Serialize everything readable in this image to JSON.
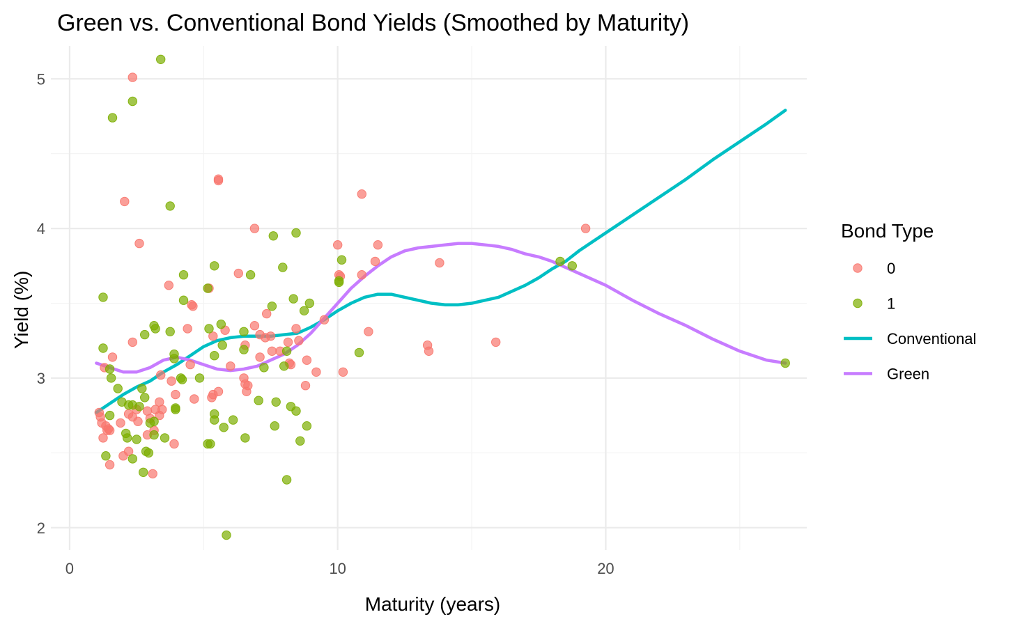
{
  "chart_data": {
    "type": "scatter",
    "title": "Green vs. Conventional Bond Yields (Smoothed by Maturity)",
    "xlabel": "Maturity (years)",
    "ylabel": "Yield (%)",
    "xlim": [
      -0.7,
      27.5
    ],
    "ylim": [
      1.85,
      5.22
    ],
    "x_ticks": [
      0,
      10,
      20
    ],
    "x_minor_ticks": [
      5,
      15,
      25
    ],
    "y_ticks": [
      2,
      3,
      4,
      5
    ],
    "y_minor_ticks": [
      2.5,
      3.5,
      4.5
    ],
    "grid": true,
    "legend": {
      "title": "Bond Type",
      "position": "right",
      "entries": [
        {
          "label": "0",
          "kind": "point",
          "color": "#F8766D"
        },
        {
          "label": "1",
          "kind": "point",
          "color": "#7CAE00"
        },
        {
          "label": "Conventional",
          "kind": "line",
          "color": "#00BFC4"
        },
        {
          "label": "Green",
          "kind": "line",
          "color": "#C77CFF"
        }
      ]
    },
    "point_series": [
      {
        "name": "0",
        "color": "#F8766D",
        "points": [
          [
            1.1,
            2.77
          ],
          [
            1.15,
            2.74
          ],
          [
            1.2,
            2.7
          ],
          [
            1.25,
            2.6
          ],
          [
            1.3,
            3.07
          ],
          [
            1.35,
            2.68
          ],
          [
            1.4,
            2.65
          ],
          [
            1.45,
            2.66
          ],
          [
            1.5,
            2.65
          ],
          [
            1.5,
            2.42
          ],
          [
            1.6,
            3.14
          ],
          [
            1.9,
            2.7
          ],
          [
            2.0,
            2.48
          ],
          [
            2.05,
            4.18
          ],
          [
            2.2,
            2.76
          ],
          [
            2.2,
            2.51
          ],
          [
            2.35,
            3.24
          ],
          [
            2.35,
            2.74
          ],
          [
            2.35,
            5.01
          ],
          [
            2.5,
            2.79
          ],
          [
            2.55,
            2.71
          ],
          [
            2.6,
            3.9
          ],
          [
            2.9,
            2.62
          ],
          [
            2.9,
            2.78
          ],
          [
            3.0,
            2.73
          ],
          [
            3.1,
            2.36
          ],
          [
            3.15,
            2.65
          ],
          [
            3.2,
            2.79
          ],
          [
            3.35,
            2.84
          ],
          [
            3.35,
            2.75
          ],
          [
            3.4,
            3.02
          ],
          [
            3.45,
            2.79
          ],
          [
            3.7,
            3.62
          ],
          [
            3.8,
            2.98
          ],
          [
            3.9,
            2.56
          ],
          [
            3.95,
            2.89
          ],
          [
            4.4,
            3.33
          ],
          [
            4.5,
            3.09
          ],
          [
            4.55,
            3.49
          ],
          [
            4.6,
            3.48
          ],
          [
            4.65,
            2.86
          ],
          [
            5.2,
            3.6
          ],
          [
            5.3,
            2.87
          ],
          [
            5.35,
            2.89
          ],
          [
            5.35,
            3.28
          ],
          [
            5.55,
            2.91
          ],
          [
            5.55,
            4.33
          ],
          [
            5.55,
            4.32
          ],
          [
            5.8,
            3.32
          ],
          [
            6.0,
            3.08
          ],
          [
            6.3,
            3.7
          ],
          [
            6.5,
            3.0
          ],
          [
            6.55,
            2.96
          ],
          [
            6.55,
            3.22
          ],
          [
            6.6,
            2.91
          ],
          [
            6.65,
            2.95
          ],
          [
            6.9,
            4.0
          ],
          [
            6.9,
            3.35
          ],
          [
            7.1,
            3.14
          ],
          [
            7.1,
            3.29
          ],
          [
            7.3,
            3.27
          ],
          [
            7.35,
            3.43
          ],
          [
            7.5,
            3.28
          ],
          [
            7.55,
            3.18
          ],
          [
            7.85,
            3.18
          ],
          [
            8.15,
            3.24
          ],
          [
            8.2,
            3.1
          ],
          [
            8.25,
            3.09
          ],
          [
            8.45,
            3.33
          ],
          [
            8.55,
            3.25
          ],
          [
            8.8,
            2.95
          ],
          [
            8.85,
            3.12
          ],
          [
            9.2,
            3.04
          ],
          [
            9.5,
            3.39
          ],
          [
            10.0,
            3.89
          ],
          [
            10.05,
            3.69
          ],
          [
            10.1,
            3.68
          ],
          [
            10.2,
            3.04
          ],
          [
            10.9,
            3.69
          ],
          [
            10.9,
            4.23
          ],
          [
            11.15,
            3.31
          ],
          [
            11.4,
            3.78
          ],
          [
            11.5,
            3.89
          ],
          [
            13.35,
            3.22
          ],
          [
            13.4,
            3.18
          ],
          [
            13.8,
            3.77
          ],
          [
            15.9,
            3.24
          ],
          [
            19.25,
            4.0
          ]
        ]
      },
      {
        "name": "1",
        "color": "#7CAE00",
        "points": [
          [
            1.25,
            3.2
          ],
          [
            1.25,
            3.54
          ],
          [
            1.35,
            2.48
          ],
          [
            1.5,
            2.75
          ],
          [
            1.5,
            3.06
          ],
          [
            1.55,
            3.0
          ],
          [
            1.6,
            4.74
          ],
          [
            1.8,
            2.93
          ],
          [
            1.95,
            2.84
          ],
          [
            2.1,
            2.63
          ],
          [
            2.15,
            2.6
          ],
          [
            2.2,
            2.82
          ],
          [
            2.35,
            2.46
          ],
          [
            2.35,
            2.82
          ],
          [
            2.35,
            4.85
          ],
          [
            2.5,
            2.59
          ],
          [
            2.6,
            2.81
          ],
          [
            2.7,
            2.93
          ],
          [
            2.75,
            2.37
          ],
          [
            2.8,
            2.87
          ],
          [
            2.8,
            3.29
          ],
          [
            2.85,
            2.51
          ],
          [
            2.95,
            2.5
          ],
          [
            3.0,
            2.7
          ],
          [
            3.15,
            2.71
          ],
          [
            3.15,
            2.62
          ],
          [
            3.15,
            3.35
          ],
          [
            3.2,
            3.33
          ],
          [
            3.4,
            5.13
          ],
          [
            3.55,
            2.6
          ],
          [
            3.75,
            3.31
          ],
          [
            3.75,
            4.15
          ],
          [
            3.9,
            3.16
          ],
          [
            3.9,
            3.13
          ],
          [
            3.95,
            2.8
          ],
          [
            3.95,
            2.79
          ],
          [
            4.15,
            3.0
          ],
          [
            4.2,
            2.99
          ],
          [
            4.25,
            3.52
          ],
          [
            4.25,
            3.69
          ],
          [
            4.85,
            3.0
          ],
          [
            5.15,
            3.6
          ],
          [
            5.15,
            2.56
          ],
          [
            5.2,
            3.33
          ],
          [
            5.25,
            2.56
          ],
          [
            5.4,
            3.75
          ],
          [
            5.4,
            2.76
          ],
          [
            5.4,
            2.72
          ],
          [
            5.4,
            3.15
          ],
          [
            5.65,
            3.36
          ],
          [
            5.7,
            3.22
          ],
          [
            5.75,
            2.67
          ],
          [
            5.85,
            1.95
          ],
          [
            6.1,
            2.72
          ],
          [
            6.5,
            3.19
          ],
          [
            6.5,
            3.31
          ],
          [
            6.55,
            2.6
          ],
          [
            6.75,
            3.69
          ],
          [
            7.05,
            2.85
          ],
          [
            7.25,
            3.07
          ],
          [
            7.55,
            3.48
          ],
          [
            7.6,
            3.95
          ],
          [
            7.65,
            2.68
          ],
          [
            7.7,
            2.84
          ],
          [
            7.95,
            3.74
          ],
          [
            8.0,
            3.08
          ],
          [
            8.1,
            3.18
          ],
          [
            8.1,
            2.32
          ],
          [
            8.25,
            2.81
          ],
          [
            8.35,
            3.53
          ],
          [
            8.45,
            3.97
          ],
          [
            8.45,
            2.78
          ],
          [
            8.6,
            2.58
          ],
          [
            8.75,
            3.45
          ],
          [
            8.85,
            2.68
          ],
          [
            8.95,
            3.5
          ],
          [
            10.05,
            3.65
          ],
          [
            10.05,
            3.64
          ],
          [
            10.15,
            3.79
          ],
          [
            10.8,
            3.17
          ],
          [
            18.3,
            3.78
          ],
          [
            18.75,
            3.75
          ],
          [
            26.7,
            3.1
          ]
        ]
      }
    ],
    "line_series": [
      {
        "name": "Conventional",
        "color": "#00BFC4",
        "x": [
          1.0,
          1.5,
          2.0,
          2.5,
          3.0,
          3.5,
          4.0,
          4.5,
          5.0,
          5.5,
          6.0,
          6.5,
          7.0,
          7.5,
          8.0,
          8.5,
          9.0,
          9.5,
          10.0,
          10.5,
          11.0,
          11.5,
          12.0,
          12.5,
          13.0,
          13.5,
          14.0,
          14.5,
          15.0,
          15.5,
          16.0,
          16.5,
          17.0,
          17.5,
          18.0,
          18.5,
          19.0,
          19.5,
          20.0,
          21.0,
          22.0,
          23.0,
          24.0,
          25.0,
          26.0,
          26.7
        ],
        "y": [
          2.77,
          2.83,
          2.89,
          2.94,
          2.98,
          3.04,
          3.09,
          3.15,
          3.21,
          3.25,
          3.27,
          3.28,
          3.28,
          3.28,
          3.29,
          3.3,
          3.34,
          3.39,
          3.45,
          3.5,
          3.54,
          3.56,
          3.56,
          3.54,
          3.52,
          3.5,
          3.49,
          3.49,
          3.5,
          3.52,
          3.54,
          3.58,
          3.62,
          3.67,
          3.73,
          3.78,
          3.85,
          3.91,
          3.97,
          4.09,
          4.21,
          4.33,
          4.46,
          4.58,
          4.7,
          4.79
        ]
      },
      {
        "name": "Green",
        "color": "#C77CFF",
        "x": [
          1.0,
          1.5,
          2.0,
          2.5,
          3.0,
          3.5,
          4.0,
          4.5,
          5.0,
          5.5,
          6.0,
          6.5,
          7.0,
          7.5,
          8.0,
          8.5,
          9.0,
          9.5,
          10.0,
          10.5,
          11.0,
          11.5,
          12.0,
          12.5,
          13.0,
          13.5,
          14.0,
          14.5,
          15.0,
          15.5,
          16.0,
          16.5,
          17.0,
          17.5,
          18.0,
          18.5,
          19.0,
          20.0,
          21.0,
          22.0,
          23.0,
          24.0,
          25.0,
          26.0,
          26.7
        ],
        "y": [
          3.1,
          3.07,
          3.04,
          3.04,
          3.07,
          3.12,
          3.14,
          3.12,
          3.09,
          3.06,
          3.05,
          3.06,
          3.08,
          3.12,
          3.16,
          3.22,
          3.3,
          3.4,
          3.5,
          3.6,
          3.68,
          3.75,
          3.81,
          3.85,
          3.87,
          3.88,
          3.89,
          3.9,
          3.9,
          3.89,
          3.88,
          3.86,
          3.83,
          3.81,
          3.78,
          3.74,
          3.7,
          3.62,
          3.52,
          3.43,
          3.35,
          3.26,
          3.18,
          3.12,
          3.1
        ]
      }
    ]
  }
}
